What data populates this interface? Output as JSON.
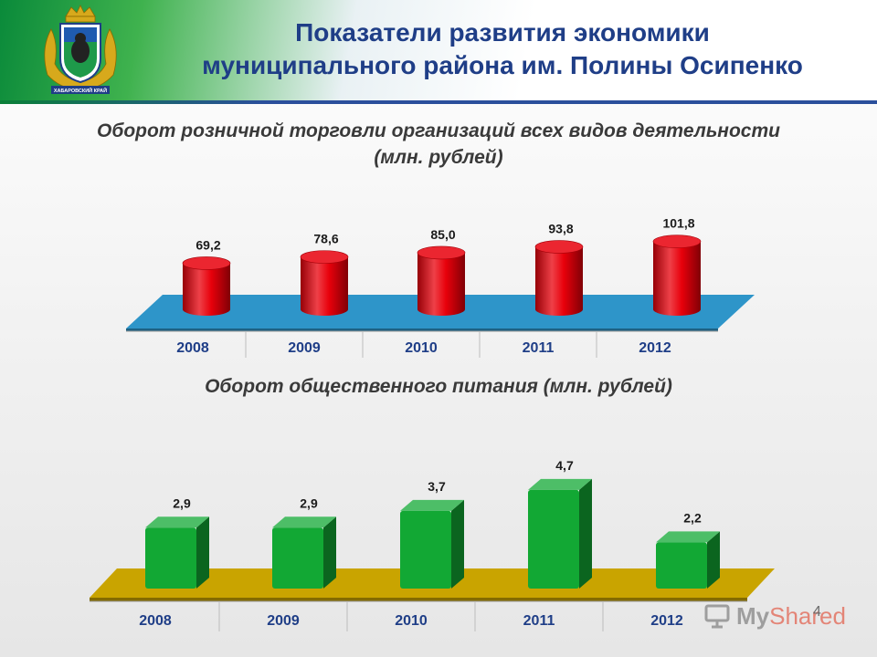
{
  "header": {
    "title_line1": "Показатели развития экономики",
    "title_line2": "муниципального района им. Полины Осипенко",
    "emblem_caption": "ХАБАРОВСКИЙ КРАЙ"
  },
  "colors": {
    "title": "#1f3e87",
    "retail_bar": "#e8000b",
    "retail_floor": "#2e95c9",
    "catering_bar": "#12a834",
    "catering_floor": "#c9a400"
  },
  "chart_data": [
    {
      "type": "bar",
      "style": "3d-cylinder",
      "title_line1": "Оборот розничной торговли организаций всех видов деятельности",
      "title_line2": "(млн. рублей)",
      "categories": [
        "2008",
        "2009",
        "2010",
        "2011",
        "2012"
      ],
      "values": [
        69.2,
        78.6,
        85.0,
        93.8,
        101.8
      ],
      "value_labels": [
        "69,2",
        "78,6",
        "85,0",
        "93,8",
        "101,8"
      ],
      "xlabel": "",
      "ylabel": ""
    },
    {
      "type": "bar",
      "style": "3d-box",
      "title": "Оборот общественного питания (млн. рублей)",
      "categories": [
        "2008",
        "2009",
        "2010",
        "2011",
        "2012"
      ],
      "values": [
        2.9,
        2.9,
        3.7,
        4.7,
        2.2
      ],
      "value_labels": [
        "2,9",
        "2,9",
        "3,7",
        "4,7",
        "2,2"
      ],
      "xlabel": "",
      "ylabel": ""
    }
  ],
  "watermark": {
    "text_a": "My",
    "text_b": "Shared"
  },
  "page_number": "4"
}
